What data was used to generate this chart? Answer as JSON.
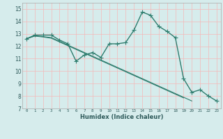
{
  "title": "",
  "xlabel": "Humidex (Indice chaleur)",
  "xlim": [
    -0.5,
    23.5
  ],
  "ylim": [
    7,
    15.5
  ],
  "yticks": [
    7,
    8,
    9,
    10,
    11,
    12,
    13,
    14,
    15
  ],
  "xticks": [
    0,
    1,
    2,
    3,
    4,
    5,
    6,
    7,
    8,
    9,
    10,
    11,
    12,
    13,
    14,
    15,
    16,
    17,
    18,
    19,
    20,
    21,
    22,
    23
  ],
  "background_color": "#d6ecec",
  "grid_color": "#f5b8b8",
  "line_color": "#2e7d6e",
  "series": [
    {
      "x": [
        0,
        1,
        2,
        3,
        4,
        5,
        6,
        7,
        8,
        9,
        10,
        11,
        12,
        13,
        14,
        15,
        16,
        17,
        18,
        19,
        20,
        21,
        22,
        23
      ],
      "y": [
        12.6,
        12.9,
        12.9,
        12.9,
        12.5,
        12.2,
        10.8,
        11.3,
        11.5,
        11.1,
        12.2,
        12.2,
        12.3,
        13.3,
        14.75,
        14.5,
        13.6,
        13.2,
        12.7,
        9.4,
        8.3,
        8.5,
        8.0,
        7.6
      ],
      "marker": "+",
      "linestyle": "-",
      "linewidth": 1.0,
      "markersize": 4
    },
    {
      "x": [
        0,
        1,
        2,
        3,
        4,
        5,
        6,
        7,
        8,
        9,
        10,
        11,
        12,
        13,
        14,
        15,
        16,
        17,
        18,
        19,
        20
      ],
      "y": [
        12.6,
        12.85,
        12.78,
        12.7,
        12.4,
        12.1,
        11.8,
        11.5,
        11.2,
        10.9,
        10.6,
        10.3,
        10.0,
        9.7,
        9.4,
        9.1,
        8.8,
        8.5,
        8.2,
        7.9,
        7.6
      ],
      "marker": null,
      "linestyle": "-",
      "linewidth": 0.8,
      "markersize": 0
    },
    {
      "x": [
        0,
        1,
        2,
        3,
        4,
        5,
        6,
        7,
        8,
        9,
        10,
        11,
        12,
        13,
        14,
        15,
        16,
        17,
        18,
        19
      ],
      "y": [
        12.6,
        12.82,
        12.75,
        12.65,
        12.35,
        12.05,
        11.75,
        11.45,
        11.15,
        10.85,
        10.55,
        10.25,
        9.95,
        9.65,
        9.35,
        9.05,
        8.75,
        8.45,
        8.15,
        7.85
      ],
      "marker": null,
      "linestyle": "-",
      "linewidth": 0.8,
      "markersize": 0
    }
  ]
}
